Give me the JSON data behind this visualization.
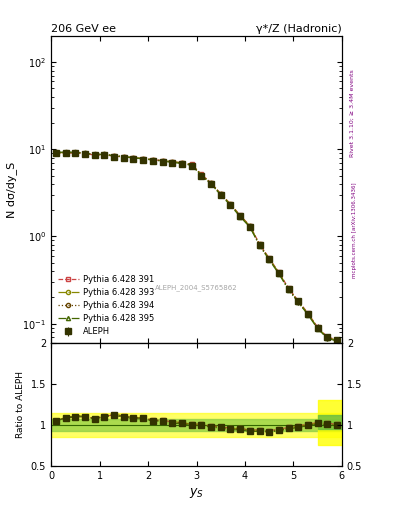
{
  "title_left": "206 GeV ee",
  "title_right": "γ*/Z (Hadronic)",
  "xlabel": "y_S",
  "ylabel_main": "N dσ/dy_S",
  "ylabel_ratio": "Ratio to ALEPH",
  "right_label_top": "Rivet 3.1.10; ≥ 3.4M events",
  "right_label_bottom": "mcplots.cern.ch [arXiv:1306.3436]",
  "watermark": "ALEPH_2004_S5765862",
  "xlim": [
    0,
    6.0
  ],
  "ylim_main": [
    0.06,
    200
  ],
  "ylim_ratio": [
    0.5,
    2.0
  ],
  "data_x": [
    0.1,
    0.3,
    0.5,
    0.7,
    0.9,
    1.1,
    1.3,
    1.5,
    1.7,
    1.9,
    2.1,
    2.3,
    2.5,
    2.7,
    2.9,
    3.1,
    3.3,
    3.5,
    3.7,
    3.9,
    4.1,
    4.3,
    4.5,
    4.7,
    4.9,
    5.1,
    5.3,
    5.5,
    5.7,
    5.9
  ],
  "data_y": [
    9.0,
    9.0,
    9.0,
    8.8,
    8.5,
    8.5,
    8.2,
    8.0,
    7.8,
    7.6,
    7.4,
    7.2,
    7.0,
    6.8,
    6.5,
    5.0,
    4.0,
    3.0,
    2.3,
    1.7,
    1.3,
    0.8,
    0.55,
    0.38,
    0.25,
    0.18,
    0.13,
    0.09,
    0.07,
    0.065
  ],
  "data_yerr": [
    0.3,
    0.2,
    0.2,
    0.2,
    0.2,
    0.2,
    0.2,
    0.2,
    0.2,
    0.2,
    0.2,
    0.2,
    0.2,
    0.2,
    0.2,
    0.2,
    0.15,
    0.12,
    0.1,
    0.08,
    0.07,
    0.05,
    0.04,
    0.03,
    0.02,
    0.015,
    0.01,
    0.008,
    0.006,
    0.005
  ],
  "mc_colors": [
    "#cc4444",
    "#888800",
    "#664400",
    "#446600"
  ],
  "mc_line_colors": [
    "#cc4444",
    "#888800",
    "#664400",
    "#446600"
  ],
  "mc_labels": [
    "Pythia 6.428 391",
    "Pythia 6.428 393",
    "Pythia 6.428 394",
    "Pythia 6.428 395"
  ],
  "mc_line_styles": [
    "--",
    "-.",
    ":",
    "-."
  ],
  "mc_markers": [
    "s",
    "o",
    "o",
    "^"
  ],
  "aleph_color": "#333300",
  "aleph_marker": "s",
  "aleph_markersize": 5,
  "ratio_band_yellow": 0.15,
  "ratio_band_green": 0.07,
  "ratio_data_x": [
    0.1,
    0.3,
    0.5,
    0.7,
    0.9,
    1.1,
    1.3,
    1.5,
    1.7,
    1.9,
    2.1,
    2.3,
    2.5,
    2.7,
    2.9,
    3.1,
    3.3,
    3.5,
    3.7,
    3.9,
    4.1,
    4.3,
    4.5,
    4.7,
    4.9,
    5.1,
    5.3,
    5.5,
    5.7,
    5.9
  ],
  "ratio_data_y": [
    1.05,
    1.08,
    1.1,
    1.1,
    1.07,
    1.1,
    1.12,
    1.1,
    1.08,
    1.08,
    1.05,
    1.05,
    1.03,
    1.02,
    1.0,
    1.0,
    0.98,
    0.97,
    0.95,
    0.95,
    0.93,
    0.93,
    0.92,
    0.94,
    0.96,
    0.98,
    1.0,
    1.02,
    1.01,
    1.0
  ],
  "ratio_last_x": 5.75,
  "ratio_last_green_band": [
    0.95,
    1.12
  ],
  "ratio_last_yellow_band": [
    0.75,
    1.3
  ]
}
